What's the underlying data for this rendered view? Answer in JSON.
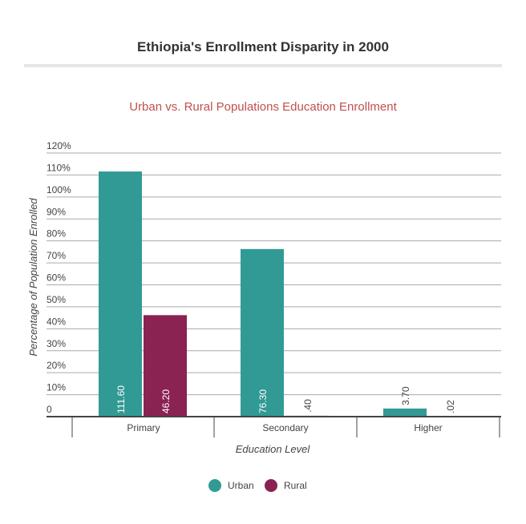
{
  "header": {
    "title": "Ethiopia's Enrollment Disparity in 2000"
  },
  "chart_data": {
    "type": "bar",
    "title": "Urban vs. Rural Populations Education Enrollment",
    "xlabel": "Education Level",
    "ylabel": "Percentage of Population Enrolled",
    "categories": [
      "Primary",
      "Secondary",
      "Higher"
    ],
    "ylim": [
      0,
      120
    ],
    "yticks": [
      "0",
      "10%",
      "20%",
      "30%",
      "40%",
      "50%",
      "60%",
      "70%",
      "80%",
      "90%",
      "100%",
      "110%",
      "120%"
    ],
    "grid": true,
    "legend_placement": "bottom",
    "series": [
      {
        "name": "Urban",
        "color": "#329a94",
        "values": [
          111.6,
          76.3,
          3.7
        ],
        "labels": [
          "111.60",
          "76.30",
          "3.70"
        ]
      },
      {
        "name": "Rural",
        "color": "#8a2252",
        "values": [
          46.2,
          0.4,
          0.02
        ],
        "labels": [
          "46.20",
          ".40",
          ".02"
        ]
      }
    ]
  }
}
